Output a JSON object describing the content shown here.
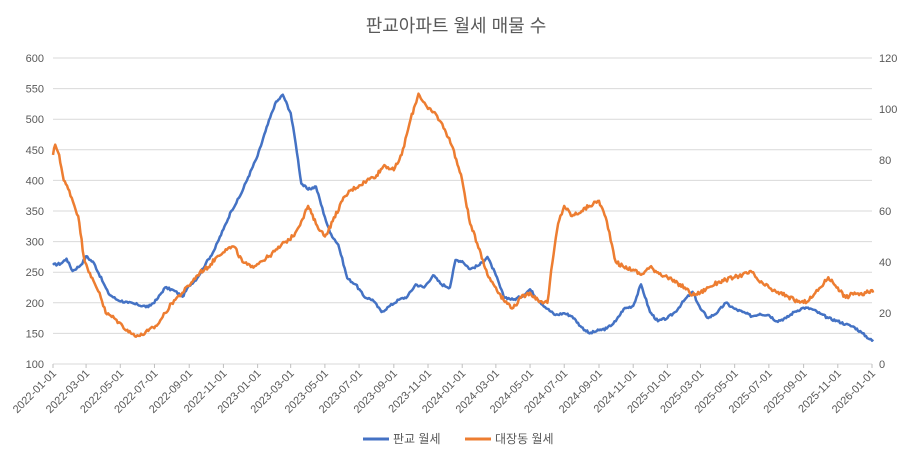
{
  "chart_data": {
    "type": "line",
    "title": "판교아파트 월세 매물 수",
    "xlabel": "",
    "ylabel": "",
    "y2label": "",
    "x_ticks": [
      "2022-01-01",
      "2022-03-01",
      "2022-05-01",
      "2022-07-01",
      "2022-09-01",
      "2022-11-01",
      "2023-01-01",
      "2023-03-01",
      "2023-05-01",
      "2023-07-01",
      "2023-09-01",
      "2023-11-01",
      "2024-01-01",
      "2024-03-01",
      "2024-05-01",
      "2024-07-01",
      "2024-09-01",
      "2024-11-01",
      "2025-01-01",
      "2025-03-01",
      "2025-05-01",
      "2025-07-01",
      "2025-09-01",
      "2025-11-01",
      "2026-01-01"
    ],
    "ylim": [
      100,
      600
    ],
    "y_ticks": [
      100,
      150,
      200,
      250,
      300,
      350,
      400,
      450,
      500,
      550,
      600
    ],
    "y2lim": [
      0,
      120
    ],
    "y2_ticks": [
      0,
      20,
      40,
      60,
      80,
      100,
      120
    ],
    "grid": true,
    "legend_position": "bottom",
    "series": [
      {
        "name": "판교 월세",
        "axis": "left",
        "color": "#4472c4",
        "points": [
          [
            "2022-01-01",
            262
          ],
          [
            "2022-01-15",
            264
          ],
          [
            "2022-01-25",
            272
          ],
          [
            "2022-02-05",
            252
          ],
          [
            "2022-02-20",
            262
          ],
          [
            "2022-03-01",
            276
          ],
          [
            "2022-03-15",
            265
          ],
          [
            "2022-04-01",
            232
          ],
          [
            "2022-04-10",
            215
          ],
          [
            "2022-04-25",
            205
          ],
          [
            "2022-05-15",
            200
          ],
          [
            "2022-06-01",
            197
          ],
          [
            "2022-06-20",
            193
          ],
          [
            "2022-07-05",
            205
          ],
          [
            "2022-07-20",
            225
          ],
          [
            "2022-08-05",
            220
          ],
          [
            "2022-08-20",
            210
          ],
          [
            "2022-09-01",
            228
          ],
          [
            "2022-09-15",
            240
          ],
          [
            "2022-10-01",
            265
          ],
          [
            "2022-10-15",
            285
          ],
          [
            "2022-11-01",
            320
          ],
          [
            "2022-11-15",
            350
          ],
          [
            "2022-12-01",
            375
          ],
          [
            "2022-12-15",
            405
          ],
          [
            "2023-01-01",
            440
          ],
          [
            "2023-01-15",
            480
          ],
          [
            "2023-02-01",
            525
          ],
          [
            "2023-02-15",
            540
          ],
          [
            "2023-03-01",
            510
          ],
          [
            "2023-03-10",
            460
          ],
          [
            "2023-03-20",
            395
          ],
          [
            "2023-04-01",
            385
          ],
          [
            "2023-04-15",
            390
          ],
          [
            "2023-05-01",
            340
          ],
          [
            "2023-05-10",
            315
          ],
          [
            "2023-05-25",
            295
          ],
          [
            "2023-06-10",
            240
          ],
          [
            "2023-06-25",
            230
          ],
          [
            "2023-07-10",
            210
          ],
          [
            "2023-07-25",
            205
          ],
          [
            "2023-08-10",
            185
          ],
          [
            "2023-08-25",
            195
          ],
          [
            "2023-09-10",
            205
          ],
          [
            "2023-09-25",
            210
          ],
          [
            "2023-10-10",
            230
          ],
          [
            "2023-10-25",
            225
          ],
          [
            "2023-11-10",
            245
          ],
          [
            "2023-11-25",
            230
          ],
          [
            "2023-12-10",
            225
          ],
          [
            "2023-12-20",
            270
          ],
          [
            "2024-01-01",
            268
          ],
          [
            "2024-01-15",
            255
          ],
          [
            "2024-02-01",
            262
          ],
          [
            "2024-02-15",
            275
          ],
          [
            "2024-03-01",
            245
          ],
          [
            "2024-03-15",
            210
          ],
          [
            "2024-04-01",
            205
          ],
          [
            "2024-04-15",
            210
          ],
          [
            "2024-05-01",
            222
          ],
          [
            "2024-05-15",
            205
          ],
          [
            "2024-06-01",
            190
          ],
          [
            "2024-06-15",
            180
          ],
          [
            "2024-07-01",
            183
          ],
          [
            "2024-07-15",
            178
          ],
          [
            "2024-08-01",
            160
          ],
          [
            "2024-08-15",
            150
          ],
          [
            "2024-09-01",
            155
          ],
          [
            "2024-09-15",
            158
          ],
          [
            "2024-10-01",
            170
          ],
          [
            "2024-10-15",
            190
          ],
          [
            "2024-11-01",
            195
          ],
          [
            "2024-11-15",
            230
          ],
          [
            "2024-12-01",
            185
          ],
          [
            "2024-12-15",
            170
          ],
          [
            "2025-01-01",
            175
          ],
          [
            "2025-01-15",
            185
          ],
          [
            "2025-02-01",
            205
          ],
          [
            "2025-02-15",
            218
          ],
          [
            "2025-03-01",
            190
          ],
          [
            "2025-03-15",
            175
          ],
          [
            "2025-04-01",
            185
          ],
          [
            "2025-04-15",
            200
          ],
          [
            "2025-05-01",
            190
          ],
          [
            "2025-05-15",
            185
          ],
          [
            "2025-06-01",
            178
          ],
          [
            "2025-06-15",
            182
          ],
          [
            "2025-07-01",
            180
          ],
          [
            "2025-07-15",
            170
          ],
          [
            "2025-08-01",
            175
          ],
          [
            "2025-08-15",
            185
          ],
          [
            "2025-09-01",
            192
          ],
          [
            "2025-09-15",
            190
          ],
          [
            "2025-10-01",
            182
          ],
          [
            "2025-10-15",
            175
          ],
          [
            "2025-11-01",
            170
          ],
          [
            "2025-11-15",
            165
          ],
          [
            "2025-12-01",
            160
          ],
          [
            "2025-12-15",
            150
          ],
          [
            "2026-01-01",
            138
          ],
          [
            "2026-01-03",
            140
          ]
        ]
      },
      {
        "name": "대장동 월세",
        "axis": "right",
        "color": "#ed7d31",
        "points": [
          [
            "2022-01-01",
            82
          ],
          [
            "2022-01-05",
            86
          ],
          [
            "2022-01-12",
            82
          ],
          [
            "2022-01-20",
            72
          ],
          [
            "2022-01-30",
            68
          ],
          [
            "2022-02-15",
            58
          ],
          [
            "2022-02-25",
            42
          ],
          [
            "2022-03-10",
            34
          ],
          [
            "2022-03-25",
            28
          ],
          [
            "2022-04-05",
            20
          ],
          [
            "2022-04-20",
            18
          ],
          [
            "2022-05-05",
            15
          ],
          [
            "2022-05-20",
            12
          ],
          [
            "2022-06-05",
            11
          ],
          [
            "2022-06-20",
            13
          ],
          [
            "2022-07-05",
            15
          ],
          [
            "2022-07-20",
            20
          ],
          [
            "2022-08-05",
            25
          ],
          [
            "2022-08-20",
            28
          ],
          [
            "2022-09-05",
            32
          ],
          [
            "2022-09-20",
            36
          ],
          [
            "2022-10-05",
            38
          ],
          [
            "2022-10-20",
            42
          ],
          [
            "2022-11-05",
            45
          ],
          [
            "2022-11-20",
            46
          ],
          [
            "2022-12-05",
            40
          ],
          [
            "2022-12-20",
            38
          ],
          [
            "2023-01-05",
            40
          ],
          [
            "2023-01-20",
            42
          ],
          [
            "2023-02-05",
            45
          ],
          [
            "2023-02-20",
            48
          ],
          [
            "2023-03-05",
            50
          ],
          [
            "2023-03-20",
            56
          ],
          [
            "2023-04-01",
            62
          ],
          [
            "2023-04-15",
            55
          ],
          [
            "2023-05-01",
            50
          ],
          [
            "2023-05-15",
            56
          ],
          [
            "2023-06-01",
            64
          ],
          [
            "2023-06-15",
            68
          ],
          [
            "2023-07-01",
            70
          ],
          [
            "2023-07-15",
            72
          ],
          [
            "2023-08-01",
            74
          ],
          [
            "2023-08-15",
            78
          ],
          [
            "2023-09-01",
            76
          ],
          [
            "2023-09-15",
            82
          ],
          [
            "2023-10-01",
            96
          ],
          [
            "2023-10-15",
            106
          ],
          [
            "2023-11-01",
            100
          ],
          [
            "2023-11-15",
            98
          ],
          [
            "2023-12-01",
            92
          ],
          [
            "2023-12-15",
            85
          ],
          [
            "2024-01-01",
            72
          ],
          [
            "2024-01-15",
            55
          ],
          [
            "2024-02-01",
            45
          ],
          [
            "2024-02-15",
            35
          ],
          [
            "2024-03-01",
            30
          ],
          [
            "2024-03-15",
            25
          ],
          [
            "2024-04-01",
            22
          ],
          [
            "2024-04-15",
            26
          ],
          [
            "2024-05-01",
            28
          ],
          [
            "2024-05-15",
            25
          ],
          [
            "2024-06-01",
            24
          ],
          [
            "2024-06-10",
            40
          ],
          [
            "2024-06-20",
            55
          ],
          [
            "2024-07-01",
            62
          ],
          [
            "2024-07-15",
            58
          ],
          [
            "2024-08-01",
            60
          ],
          [
            "2024-08-15",
            62
          ],
          [
            "2024-09-01",
            64
          ],
          [
            "2024-09-15",
            56
          ],
          [
            "2024-10-01",
            40
          ],
          [
            "2024-10-15",
            38
          ],
          [
            "2024-11-01",
            37
          ],
          [
            "2024-11-15",
            35
          ],
          [
            "2024-12-01",
            38
          ],
          [
            "2024-12-15",
            36
          ],
          [
            "2025-01-01",
            34
          ],
          [
            "2025-01-15",
            32
          ],
          [
            "2025-02-01",
            30
          ],
          [
            "2025-02-15",
            27
          ],
          [
            "2025-03-01",
            28
          ],
          [
            "2025-03-15",
            30
          ],
          [
            "2025-04-01",
            32
          ],
          [
            "2025-04-15",
            33
          ],
          [
            "2025-05-01",
            34
          ],
          [
            "2025-05-15",
            35
          ],
          [
            "2025-06-01",
            36
          ],
          [
            "2025-06-15",
            32
          ],
          [
            "2025-07-01",
            30
          ],
          [
            "2025-07-15",
            28
          ],
          [
            "2025-08-01",
            27
          ],
          [
            "2025-08-15",
            25
          ],
          [
            "2025-09-01",
            24
          ],
          [
            "2025-09-15",
            26
          ],
          [
            "2025-10-01",
            30
          ],
          [
            "2025-10-15",
            34
          ],
          [
            "2025-11-01",
            30
          ],
          [
            "2025-11-15",
            26
          ],
          [
            "2025-12-01",
            28
          ],
          [
            "2025-12-15",
            27
          ],
          [
            "2026-01-01",
            29
          ],
          [
            "2026-01-03",
            28
          ]
        ]
      }
    ]
  }
}
